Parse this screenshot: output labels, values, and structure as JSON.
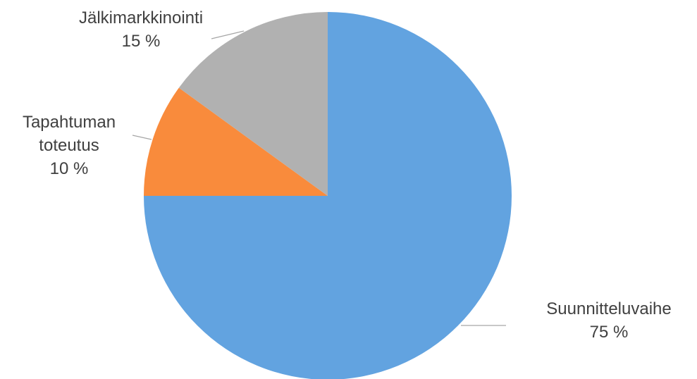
{
  "chart_data": {
    "type": "pie",
    "title": "",
    "start_angle_deg": 0,
    "direction": "clockwise",
    "slices": [
      {
        "name": "Suunnitteluvaihe",
        "value": 75,
        "value_label": "75 %",
        "color": "#62A3E0"
      },
      {
        "name": "Tapahtuman toteutus",
        "value": 10,
        "value_label": "10 %",
        "color": "#F98B3C"
      },
      {
        "name": "Jälkimarkkinointi",
        "value": 15,
        "value_label": "15 %",
        "color": "#B1B1B1"
      }
    ],
    "legend": "none",
    "data_labels": "outside with leader lines"
  }
}
